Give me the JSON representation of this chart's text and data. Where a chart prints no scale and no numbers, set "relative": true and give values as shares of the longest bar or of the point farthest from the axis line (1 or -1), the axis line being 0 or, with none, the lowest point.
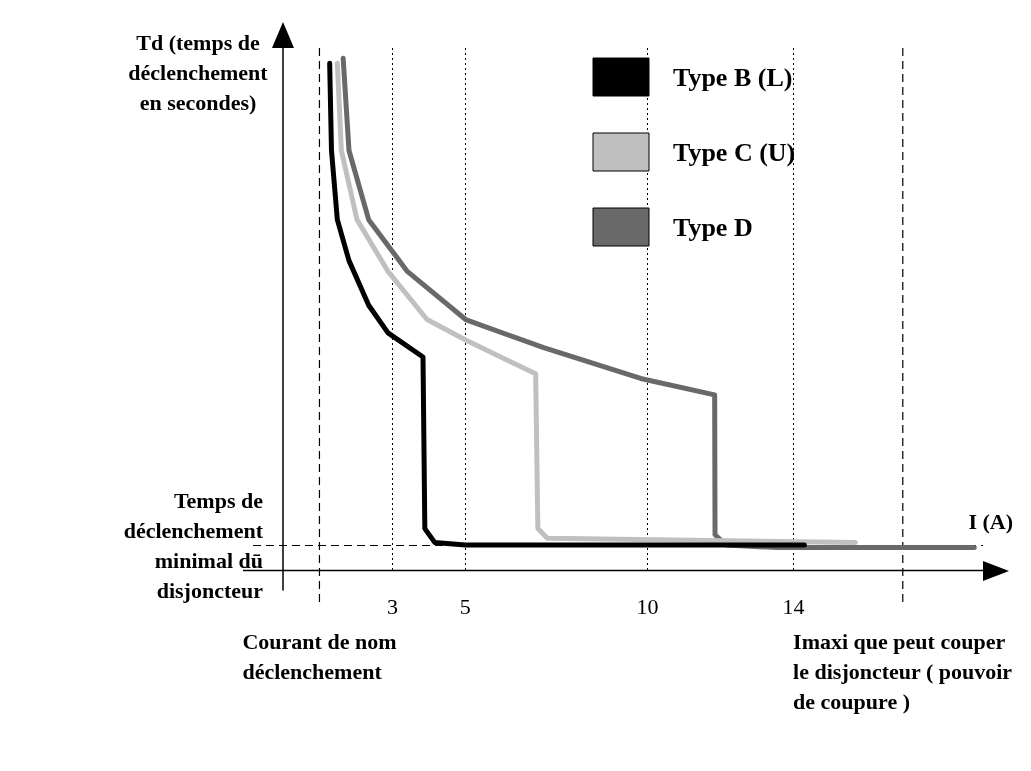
{
  "chart_data": {
    "type": "line",
    "relative": true,
    "xlabel": "I (A)",
    "ylabel": "Td (temps de déclenchement en secondes)",
    "xlim": [
      0,
      19.2
    ],
    "xticks": [
      3,
      5,
      10,
      14
    ],
    "grid": "x",
    "legend": "top right",
    "series": [
      {
        "name": "Type B (L)",
        "color": "#000000",
        "x": [
          1.28,
          1.33,
          1.49,
          1.81,
          2.35,
          2.88,
          3.84,
          3.89,
          4.16,
          5.0,
          14.3
        ],
        "values": [
          0.99,
          0.82,
          0.685,
          0.605,
          0.518,
          0.464,
          0.417,
          0.082,
          0.055,
          0.05,
          0.05
        ]
      },
      {
        "name": "Type C (U)",
        "color": "#c0c0c0",
        "x": [
          1.49,
          1.6,
          2.03,
          2.88,
          3.95,
          5.01,
          6.93,
          6.99,
          7.25,
          15.7
        ],
        "values": [
          0.99,
          0.82,
          0.685,
          0.584,
          0.49,
          0.45,
          0.384,
          0.082,
          0.063,
          0.055
        ]
      },
      {
        "name": "Type D",
        "color": "#696969",
        "x": [
          1.65,
          1.81,
          2.35,
          3.41,
          5.01,
          7.15,
          9.81,
          11.84,
          11.85,
          12.16,
          13.55,
          18.96
        ],
        "values": [
          1.0,
          0.82,
          0.685,
          0.584,
          0.49,
          0.435,
          0.375,
          0.343,
          0.07,
          0.05,
          0.045,
          0.045
        ]
      }
    ],
    "ref_lines": [
      {
        "axis": "y",
        "value": 0.049,
        "label": "Temps de déclenchement minimal dū disjoncteur",
        "line_style": "dashed"
      },
      {
        "axis": "x",
        "value": 1,
        "label": "Courant de nom déclenchement",
        "line_style": "dashed"
      },
      {
        "axis": "x",
        "value": 17,
        "label": "Imaxi que peut couper le disjoncteur ( pouvoir de coupure )",
        "line_style": "dashed"
      }
    ]
  }
}
